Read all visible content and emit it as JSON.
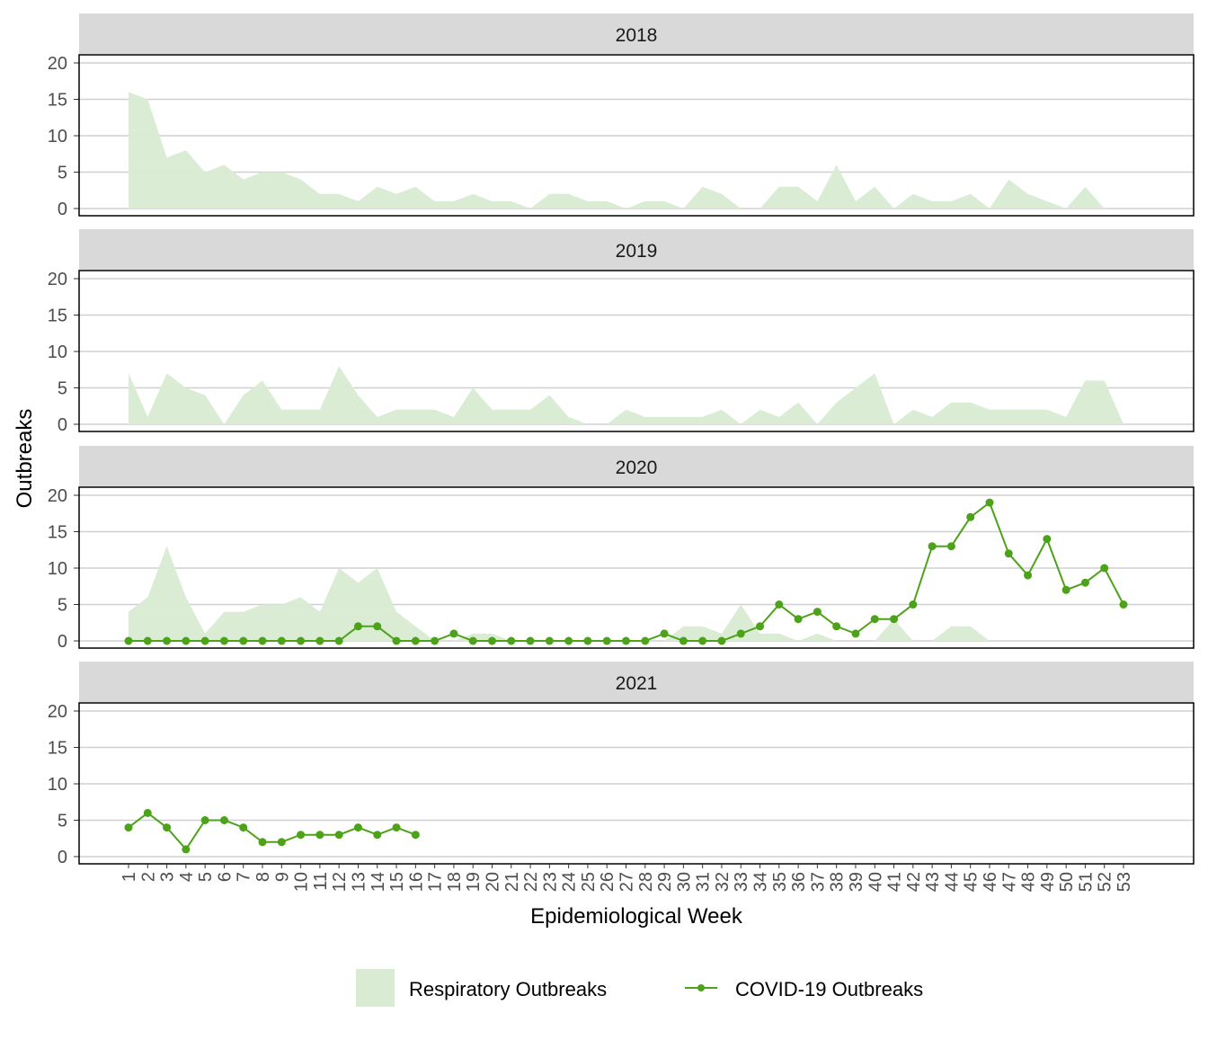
{
  "chart_data": {
    "type": "area+line",
    "facets": [
      "2018",
      "2019",
      "2020",
      "2021"
    ],
    "xlabel": "Epidemiological Week",
    "ylabel": "Outbreaks",
    "x": [
      1,
      2,
      3,
      4,
      5,
      6,
      7,
      8,
      9,
      10,
      11,
      12,
      13,
      14,
      15,
      16,
      17,
      18,
      19,
      20,
      21,
      22,
      23,
      24,
      25,
      26,
      27,
      28,
      29,
      30,
      31,
      32,
      33,
      34,
      35,
      36,
      37,
      38,
      39,
      40,
      41,
      42,
      43,
      44,
      45,
      46,
      47,
      48,
      49,
      50,
      51,
      52,
      53
    ],
    "ylim": [
      0,
      20
    ],
    "yticks": [
      0,
      5,
      10,
      15,
      20
    ],
    "grid": true,
    "legend_position": "bottom",
    "colors": {
      "respiratory": "#d9ebd3",
      "covid": "#4ca319",
      "strip": "#d9d9d9"
    },
    "series": [
      {
        "name": "Respiratory Outbreaks",
        "type": "area",
        "values": {
          "2018": [
            16,
            15,
            7,
            8,
            5,
            6,
            4,
            5,
            5,
            4,
            2,
            2,
            1,
            3,
            2,
            3,
            1,
            1,
            2,
            1,
            1,
            0,
            2,
            2,
            1,
            1,
            0,
            1,
            1,
            0,
            3,
            2,
            0,
            0,
            3,
            3,
            1,
            6,
            1,
            3,
            0,
            2,
            1,
            1,
            2,
            0,
            4,
            2,
            1,
            0,
            3,
            0,
            null
          ],
          "2019": [
            7,
            1,
            7,
            5,
            4,
            0,
            4,
            6,
            2,
            2,
            2,
            8,
            4,
            1,
            2,
            2,
            2,
            1,
            5,
            2,
            2,
            2,
            4,
            1,
            0,
            0,
            2,
            1,
            1,
            1,
            1,
            2,
            0,
            2,
            1,
            3,
            0,
            3,
            5,
            7,
            0,
            2,
            1,
            3,
            3,
            2,
            2,
            2,
            2,
            1,
            6,
            6,
            0
          ],
          "2020": [
            4,
            6,
            13,
            6,
            1,
            4,
            4,
            5,
            5,
            6,
            4,
            10,
            8,
            10,
            4,
            2,
            0,
            0,
            1,
            1,
            0,
            0,
            0,
            0,
            0,
            0,
            0,
            0,
            0,
            2,
            2,
            1,
            5,
            1,
            1,
            0,
            1,
            0,
            0,
            0,
            3,
            0,
            0,
            2,
            2,
            0,
            null,
            null,
            null,
            null,
            null,
            null,
            null
          ],
          "2021": []
        }
      },
      {
        "name": "COVID-19 Outbreaks",
        "type": "line",
        "values": {
          "2018": [],
          "2019": [],
          "2020": [
            0,
            0,
            0,
            0,
            0,
            0,
            0,
            0,
            0,
            0,
            0,
            0,
            2,
            2,
            0,
            0,
            0,
            1,
            0,
            0,
            0,
            0,
            0,
            0,
            0,
            0,
            0,
            0,
            1,
            0,
            0,
            0,
            1,
            2,
            5,
            3,
            4,
            2,
            1,
            3,
            3,
            5,
            13,
            13,
            17,
            19,
            12,
            9,
            14,
            7,
            8,
            10,
            5
          ],
          "2021": [
            4,
            6,
            4,
            1,
            5,
            5,
            4,
            2,
            2,
            3,
            3,
            3,
            4,
            3,
            4,
            3
          ]
        }
      }
    ]
  }
}
